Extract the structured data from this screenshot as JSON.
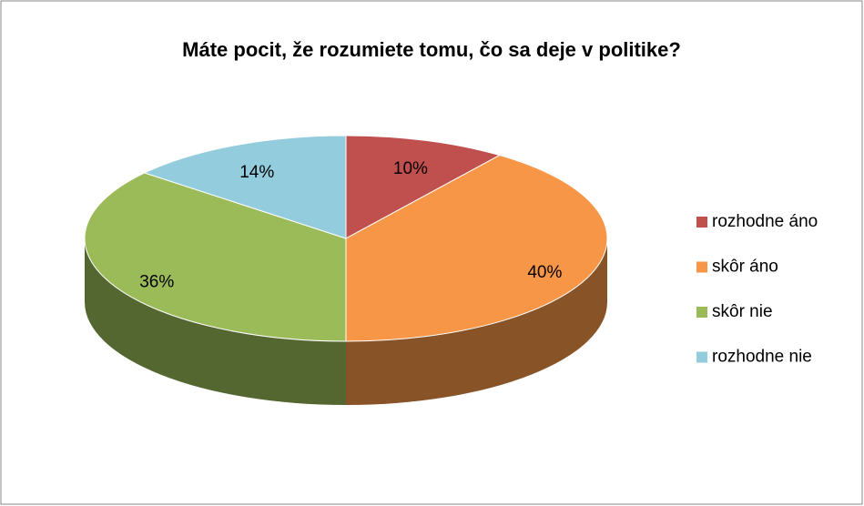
{
  "chart_data": {
    "type": "pie3d",
    "title": "Máte pocit, že rozumiete tomu, čo sa deje v politike?",
    "categories": [
      "rozhodne áno",
      "skôr áno",
      "skôr nie",
      "rozhodne nie"
    ],
    "values": [
      10,
      40,
      36,
      14
    ],
    "value_labels": [
      "10%",
      "40%",
      "36%",
      "14%"
    ],
    "colors": [
      "#c0504d",
      "#f79646",
      "#9bbb59",
      "#93cddd"
    ],
    "legend": "right"
  }
}
